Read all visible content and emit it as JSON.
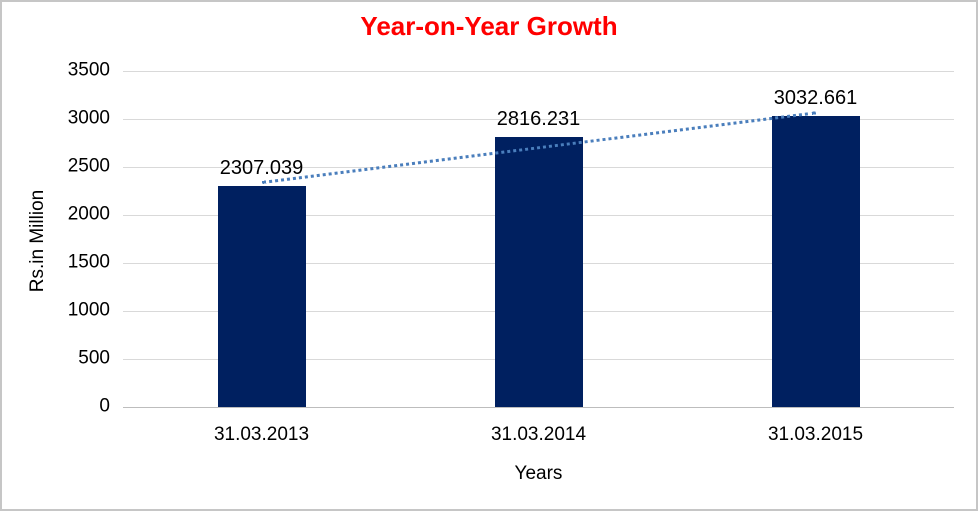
{
  "window": {
    "background_color": "#ffffff",
    "frame_border_color": "#c6c6c6"
  },
  "chart_data": {
    "type": "bar",
    "title": "Year-on-Year Growth",
    "title_color": "#ff0000",
    "xlabel": "Years",
    "ylabel": "Rs.in Million",
    "categories": [
      "31.03.2013",
      "31.03.2014",
      "31.03.2015"
    ],
    "series": [
      {
        "name": "Rs.in Million",
        "values": [
          2307.039,
          2816.231,
          3032.661
        ],
        "value_labels": [
          "2307.039",
          "2816.231",
          "3032.661"
        ]
      }
    ],
    "ylim": [
      0,
      3500
    ],
    "yticks": [
      0,
      500,
      1000,
      1500,
      2000,
      2500,
      3000,
      3500
    ],
    "ytick_labels": [
      "0",
      "500",
      "1000",
      "1500",
      "2000",
      "2500",
      "3000",
      "3500"
    ],
    "grid": true,
    "legend_position": "none",
    "bar_color": "#002060",
    "gridline_color": "#d9d9d9",
    "axis_line_color": "#bdbdbd",
    "trendline": {
      "type": "linear",
      "style": "dotted",
      "color": "#4a7ebc"
    }
  }
}
